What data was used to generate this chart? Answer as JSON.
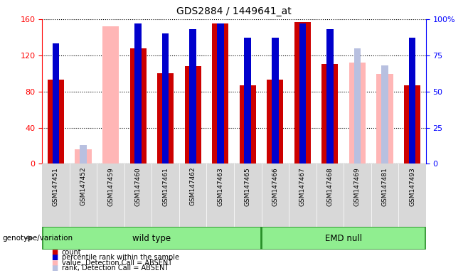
{
  "title": "GDS2884 / 1449641_at",
  "samples": [
    "GSM147451",
    "GSM147452",
    "GSM147459",
    "GSM147460",
    "GSM147461",
    "GSM147462",
    "GSM147463",
    "GSM147465",
    "GSM147466",
    "GSM147467",
    "GSM147468",
    "GSM147469",
    "GSM147481",
    "GSM147493"
  ],
  "count": [
    93,
    0,
    0,
    128,
    100,
    108,
    155,
    87,
    93,
    157,
    110,
    0,
    0,
    87
  ],
  "percentile": [
    83,
    0,
    0,
    97,
    90,
    93,
    97,
    87,
    87,
    97,
    93,
    0,
    0,
    87
  ],
  "absent_value": [
    0,
    10,
    95,
    0,
    0,
    0,
    0,
    0,
    0,
    0,
    0,
    70,
    62,
    0
  ],
  "absent_rank": [
    0,
    13,
    0,
    0,
    0,
    0,
    0,
    0,
    0,
    0,
    0,
    80,
    68,
    0
  ],
  "absent_flag": [
    false,
    true,
    true,
    false,
    false,
    false,
    false,
    false,
    false,
    false,
    false,
    true,
    true,
    false
  ],
  "wt_count": 8,
  "emd_count": 6,
  "ylim_left": [
    0,
    160
  ],
  "ylim_right": [
    0,
    100
  ],
  "yticks_left": [
    0,
    40,
    80,
    120,
    160
  ],
  "yticks_right": [
    0,
    25,
    50,
    75,
    100
  ],
  "yticklabels_right": [
    "0",
    "25",
    "50",
    "75",
    "100%"
  ],
  "bar_color_count": "#cc0000",
  "bar_color_percentile": "#0000cc",
  "bar_color_absent_value": "#ffb6b6",
  "bar_color_absent_rank": "#b8c0e0",
  "bar_width": 0.6,
  "percentile_bar_width": 0.25,
  "bg_color": "#ffffff",
  "plot_bg": "#ffffff",
  "tick_area_bg": "#d8d8d8",
  "group_fill": "#90EE90",
  "group_edge": "#228B22",
  "legend_items": [
    [
      "count",
      "#cc0000",
      "square"
    ],
    [
      "percentile rank within the sample",
      "#0000cc",
      "square"
    ],
    [
      "value, Detection Call = ABSENT",
      "#ffb6b6",
      "square"
    ],
    [
      "rank, Detection Call = ABSENT",
      "#b8c0e0",
      "square"
    ]
  ],
  "genotype_label": "genotype/variation",
  "title_fontsize": 10
}
